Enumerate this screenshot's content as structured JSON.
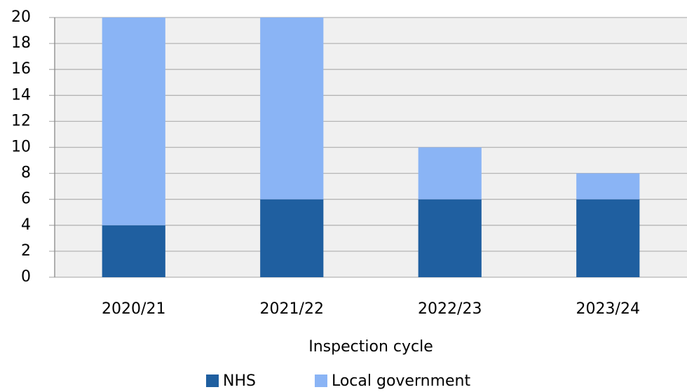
{
  "chart_data": {
    "type": "stacked_bar",
    "x_label": "Inspection cycle",
    "categories": [
      "2020/21",
      "2021/22",
      "2022/23",
      "2023/24"
    ],
    "series": [
      {
        "name": "NHS",
        "color": "#1f5fa0",
        "values": [
          4,
          6,
          6,
          6
        ]
      },
      {
        "name": "Local government",
        "color": "#8ab4f5",
        "values": [
          16,
          14,
          4,
          2
        ]
      }
    ],
    "ylim": [
      0,
      20
    ],
    "yticks": [
      0,
      2,
      4,
      6,
      8,
      10,
      12,
      14,
      16,
      18,
      20
    ],
    "grid": true,
    "legend": "bottom"
  }
}
